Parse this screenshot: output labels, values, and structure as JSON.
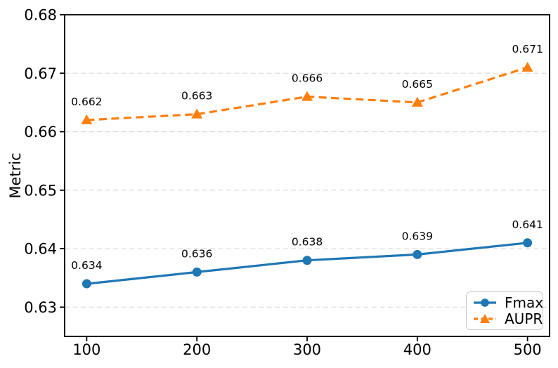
{
  "figure": {
    "background": "#ffffff",
    "axis_color": "#000000",
    "text_color": "#000000"
  },
  "chart_data": {
    "type": "line",
    "title": "",
    "xlabel": "",
    "ylabel": "Metric",
    "x": [
      100,
      200,
      300,
      400,
      500
    ],
    "xtick_labels": [
      "100",
      "200",
      "300",
      "400",
      "500"
    ],
    "yticks": [
      0.63,
      0.64,
      0.65,
      0.66,
      0.67,
      0.68
    ],
    "ytick_labels": [
      "0.63",
      "0.64",
      "0.65",
      "0.66",
      "0.67",
      "0.68"
    ],
    "xlim": [
      80,
      520
    ],
    "ylim": [
      0.625,
      0.68
    ],
    "grid": "horizontal-dashed",
    "grid_color": "#dcdcdc",
    "legend_position": "lower right",
    "series": [
      {
        "name": "Fmax",
        "values": [
          0.634,
          0.636,
          0.638,
          0.639,
          0.641
        ],
        "point_labels": [
          "0.634",
          "0.636",
          "0.638",
          "0.639",
          "0.641"
        ],
        "color": "#1f77b4",
        "linestyle": "solid",
        "marker": "circle"
      },
      {
        "name": "AUPR",
        "values": [
          0.662,
          0.663,
          0.666,
          0.665,
          0.671
        ],
        "point_labels": [
          "0.662",
          "0.663",
          "0.666",
          "0.665",
          "0.671"
        ],
        "color": "#ff7f0e",
        "linestyle": "dashed",
        "marker": "triangle"
      }
    ]
  }
}
